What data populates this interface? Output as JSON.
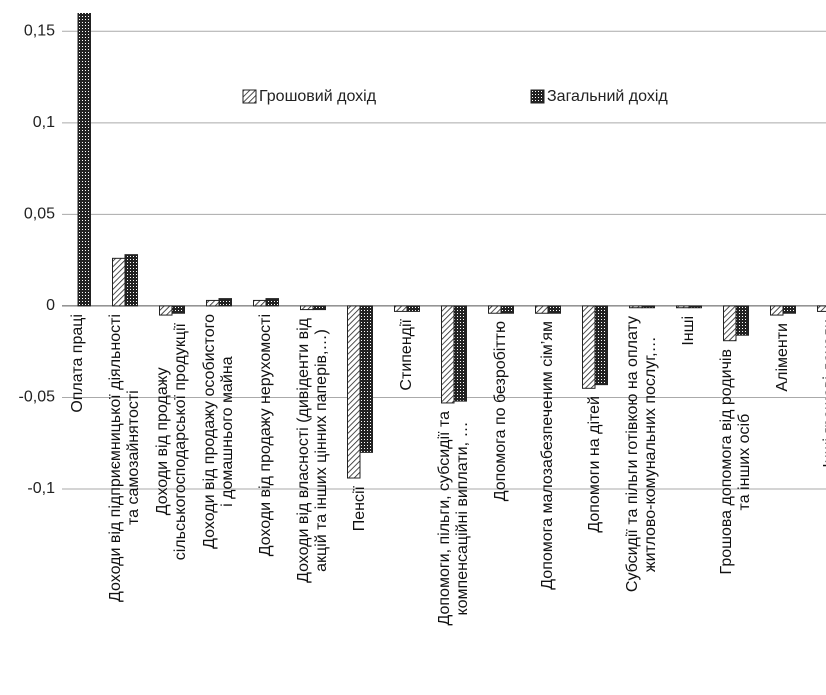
{
  "chart_data": {
    "type": "bar",
    "categories": [
      "Оплата праці",
      "Доходи від підприємницької діяльності\nта самозайнятості",
      "Доходи від продажу\nсільськогосподарської продукції",
      "Доходи від продажу особистого\nі домашнього майна",
      "Доходи від продажу нерухомості",
      "Доходи від власності (дивіденти від\nакцій та інших цінних паперів,…)",
      "Пенсії",
      "Стипендії",
      "Допомоги, пільги, субсидії та\nкомпенсаційні виплати, …",
      "Допомога по безробіттю",
      "Допомога малозабезпеченим сім’ям",
      "Допомоги на дітей",
      "Субсидії та пільги готівкою на оплату\nжитлово-комунальних послуг,…",
      "Інші",
      "Грошова допомога від родичів\nта інших осіб",
      "Аліменти",
      "Інші грошові доходи"
    ],
    "series": [
      {
        "name": "Грошовий дохід",
        "color": "#222222",
        "pattern": "hatch",
        "values": [
          null,
          0.026,
          -0.005,
          0.003,
          0.003,
          -0.002,
          -0.094,
          -0.003,
          -0.053,
          -0.004,
          -0.004,
          -0.045,
          -0.001,
          -0.001,
          -0.019,
          -0.005,
          -0.003
        ]
      },
      {
        "name": "Загальний дохід",
        "color": "#222222",
        "pattern": "dots",
        "values": [
          0.17,
          0.028,
          -0.004,
          0.004,
          0.004,
          -0.002,
          -0.08,
          -0.003,
          -0.052,
          -0.004,
          -0.004,
          -0.043,
          -0.001,
          -0.001,
          -0.016,
          -0.004,
          null
        ]
      }
    ],
    "ylim": [
      -0.1,
      0.16
    ],
    "yticks": [
      {
        "value": -0.1,
        "label": "-0,1"
      },
      {
        "value": -0.05,
        "label": "-0,05"
      },
      0,
      {
        "value": 0.05,
        "label": "0,05"
      },
      {
        "value": 0.1,
        "label": "0,1"
      },
      {
        "value": 0.15,
        "label": "0,15"
      }
    ],
    "grid": true,
    "legend": "top"
  }
}
